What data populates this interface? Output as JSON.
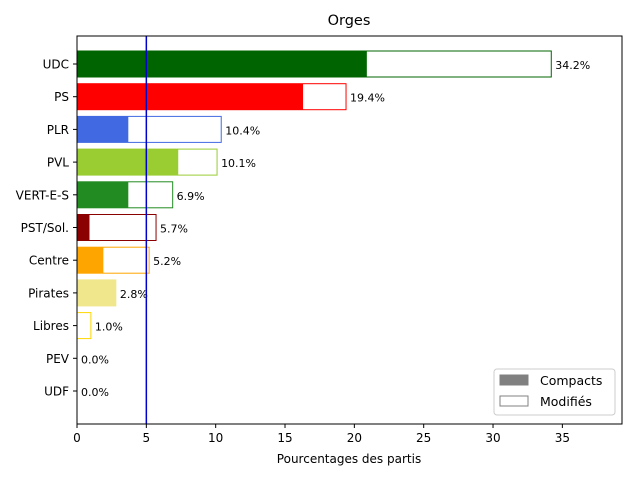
{
  "chart_data": {
    "type": "bar",
    "orientation": "horizontal",
    "title": "Orges",
    "xlabel": "Pourcentages des partis",
    "ylabel": "",
    "xlim": [
      0,
      39.3
    ],
    "xticks": [
      0,
      5,
      10,
      15,
      20,
      25,
      30,
      35
    ],
    "reference_line": {
      "x": 5,
      "color": "#0000cc"
    },
    "grid": false,
    "legend_position": "lower-right",
    "legend": [
      {
        "name": "Compacts",
        "style": "filled",
        "color": "#808080"
      },
      {
        "name": "Modifiés",
        "style": "outline",
        "color": "#808080"
      }
    ],
    "categories": [
      "UDC",
      "PS",
      "PLR",
      "PVL",
      "VERT-E-S",
      "PST/Sol.",
      "Centre",
      "Pirates",
      "Libres",
      "PEV",
      "UDF"
    ],
    "series": [
      {
        "name": "Compacts",
        "values": [
          20.9,
          16.3,
          3.7,
          7.3,
          3.7,
          0.9,
          1.9,
          2.8,
          0.0,
          0.0,
          0.0
        ]
      },
      {
        "name": "Modifiés",
        "values": [
          34.2,
          19.4,
          10.4,
          10.1,
          6.9,
          5.7,
          5.2,
          2.8,
          1.0,
          0.0,
          0.0
        ]
      }
    ],
    "value_labels": [
      "34.2%",
      "19.4%",
      "10.4%",
      "10.1%",
      "6.9%",
      "5.7%",
      "5.2%",
      "2.8%",
      "1.0%",
      "0.0%",
      "0.0%"
    ],
    "colors": [
      "#006400",
      "#ff0000",
      "#4169e1",
      "#9acd32",
      "#228b22",
      "#8b0000",
      "#ffa500",
      "#f0e68c",
      "#ffd700",
      "#00bfff",
      "#1e90ff"
    ]
  }
}
